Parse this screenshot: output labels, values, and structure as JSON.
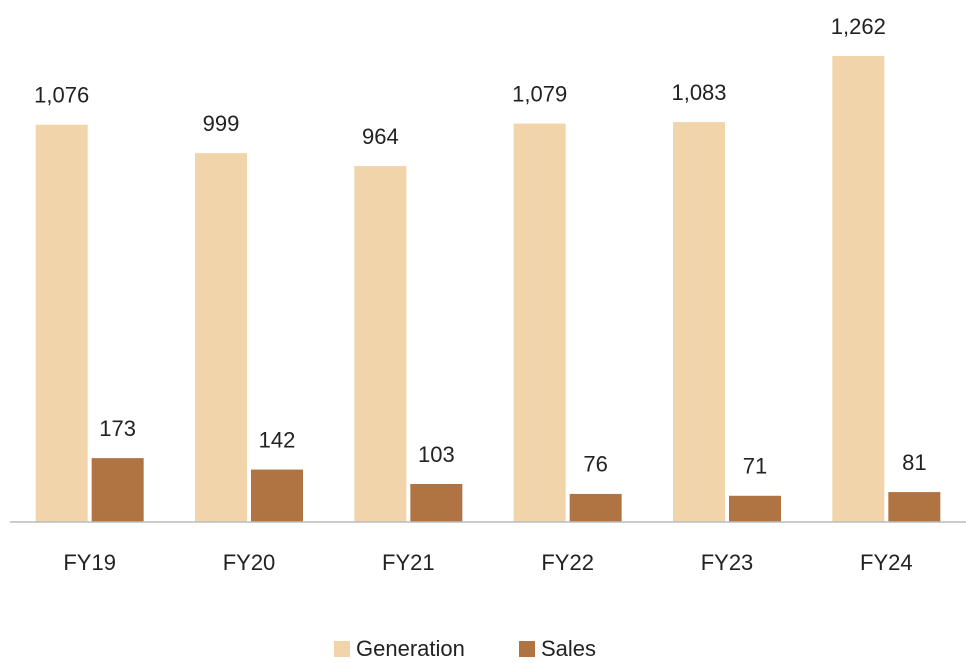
{
  "chart_data": {
    "type": "bar",
    "categories": [
      "FY19",
      "FY20",
      "FY21",
      "FY22",
      "FY23",
      "FY24"
    ],
    "series": [
      {
        "name": "Generation",
        "color": "#f2d4aa",
        "values": [
          1076,
          999,
          964,
          1079,
          1083,
          1262
        ],
        "value_labels": [
          "1,076",
          "999",
          "964",
          "1,079",
          "1,083",
          "1,262"
        ]
      },
      {
        "name": "Sales",
        "color": "#b07342",
        "values": [
          173,
          142,
          103,
          76,
          71,
          81
        ]
      }
    ],
    "legend": "bottom"
  }
}
